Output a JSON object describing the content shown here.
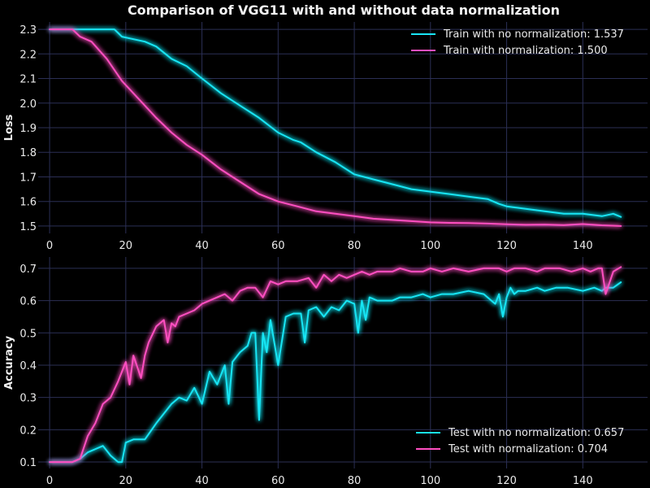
{
  "chart_data": {
    "title": "Comparison of VGG11 with and without data normalization",
    "grid": true,
    "colors": {
      "no_normalization": "#19e6f5",
      "normalization": "#ff4fc1",
      "background": "#000000",
      "grid": "#2b2f55"
    },
    "panels": [
      {
        "id": "loss",
        "type": "line",
        "ylabel": "Loss",
        "xlim": [
          -3,
          157
        ],
        "ylim": [
          1.47,
          2.33
        ],
        "xticks": [
          "0",
          "20",
          "40",
          "60",
          "80",
          "100",
          "120",
          "140"
        ],
        "yticks": [
          "1.5",
          "1.6",
          "1.7",
          "1.8",
          "1.9",
          "2.0",
          "2.1",
          "2.2",
          "2.3"
        ],
        "legend_position": "upper-right",
        "series": [
          {
            "name": "Train with no normalization: 1.537",
            "color": "#19e6f5",
            "x": [
              0,
              5,
              10,
              15,
              17,
              19,
              25,
              28,
              32,
              36,
              40,
              45,
              50,
              55,
              60,
              64,
              66,
              70,
              75,
              80,
              85,
              90,
              95,
              100,
              105,
              110,
              115,
              118,
              120,
              125,
              130,
              135,
              140,
              145,
              148,
              150
            ],
            "y": [
              2.3,
              2.3,
              2.3,
              2.3,
              2.3,
              2.27,
              2.25,
              2.23,
              2.18,
              2.15,
              2.1,
              2.04,
              1.99,
              1.94,
              1.88,
              1.85,
              1.84,
              1.8,
              1.76,
              1.71,
              1.69,
              1.67,
              1.65,
              1.64,
              1.63,
              1.62,
              1.61,
              1.59,
              1.58,
              1.57,
              1.56,
              1.55,
              1.55,
              1.54,
              1.55,
              1.537
            ]
          },
          {
            "name": "Train with normalization: 1.500",
            "color": "#ff4fc1",
            "x": [
              0,
              3,
              6,
              8,
              11,
              15,
              19,
              22,
              25,
              28,
              32,
              36,
              40,
              45,
              50,
              55,
              60,
              65,
              70,
              75,
              80,
              85,
              90,
              95,
              100,
              105,
              110,
              115,
              120,
              125,
              130,
              135,
              140,
              145,
              150
            ],
            "y": [
              2.3,
              2.3,
              2.3,
              2.27,
              2.25,
              2.18,
              2.09,
              2.04,
              1.99,
              1.94,
              1.88,
              1.83,
              1.79,
              1.73,
              1.68,
              1.63,
              1.6,
              1.58,
              1.56,
              1.55,
              1.54,
              1.53,
              1.525,
              1.52,
              1.515,
              1.513,
              1.512,
              1.51,
              1.507,
              1.505,
              1.506,
              1.504,
              1.508,
              1.503,
              1.5
            ]
          }
        ]
      },
      {
        "id": "accuracy",
        "type": "line",
        "ylabel": "Accuracy",
        "xlim": [
          -3,
          157
        ],
        "ylim": [
          0.08,
          0.735
        ],
        "xticks": [
          "0",
          "20",
          "40",
          "60",
          "80",
          "100",
          "120",
          "140"
        ],
        "yticks": [
          "0.1",
          "0.2",
          "0.3",
          "0.4",
          "0.5",
          "0.6",
          "0.7"
        ],
        "legend_position": "lower-right",
        "series": [
          {
            "name": "Test with no normalization: 0.657",
            "color": "#19e6f5",
            "x": [
              0,
              2,
              4,
              6,
              8,
              10,
              12,
              14,
              16,
              18,
              19,
              20,
              22,
              25,
              28,
              30,
              32,
              34,
              36,
              38,
              40,
              42,
              44,
              46,
              47,
              48,
              50,
              52,
              53,
              54,
              55,
              56,
              57,
              58,
              60,
              62,
              64,
              66,
              67,
              68,
              70,
              72,
              74,
              76,
              78,
              80,
              81,
              82,
              83,
              84,
              86,
              88,
              90,
              92,
              95,
              98,
              100,
              103,
              106,
              110,
              114,
              117,
              118,
              119,
              120,
              121,
              122,
              123,
              125,
              128,
              130,
              133,
              136,
              140,
              143,
              145,
              146,
              148,
              150
            ],
            "y": [
              0.1,
              0.1,
              0.1,
              0.1,
              0.11,
              0.13,
              0.14,
              0.15,
              0.12,
              0.1,
              0.1,
              0.16,
              0.17,
              0.17,
              0.22,
              0.25,
              0.28,
              0.3,
              0.29,
              0.33,
              0.28,
              0.38,
              0.34,
              0.4,
              0.28,
              0.41,
              0.44,
              0.46,
              0.5,
              0.5,
              0.23,
              0.5,
              0.44,
              0.54,
              0.4,
              0.55,
              0.56,
              0.56,
              0.47,
              0.57,
              0.58,
              0.55,
              0.58,
              0.57,
              0.6,
              0.59,
              0.5,
              0.6,
              0.54,
              0.61,
              0.6,
              0.6,
              0.6,
              0.61,
              0.61,
              0.62,
              0.61,
              0.62,
              0.62,
              0.63,
              0.62,
              0.59,
              0.62,
              0.55,
              0.61,
              0.64,
              0.62,
              0.63,
              0.63,
              0.64,
              0.63,
              0.64,
              0.64,
              0.63,
              0.64,
              0.63,
              0.64,
              0.64,
              0.657
            ]
          },
          {
            "name": "Test with normalization: 0.704",
            "color": "#ff4fc1",
            "x": [
              0,
              2,
              4,
              6,
              8,
              10,
              12,
              14,
              16,
              18,
              20,
              21,
              22,
              24,
              25,
              26,
              28,
              30,
              31,
              32,
              33,
              34,
              36,
              38,
              40,
              42,
              44,
              46,
              48,
              50,
              52,
              54,
              56,
              58,
              60,
              62,
              65,
              68,
              70,
              72,
              74,
              76,
              78,
              80,
              82,
              84,
              86,
              88,
              90,
              92,
              95,
              98,
              100,
              103,
              106,
              110,
              114,
              118,
              120,
              122,
              125,
              128,
              130,
              134,
              137,
              140,
              142,
              144,
              145,
              146,
              148,
              150
            ],
            "y": [
              0.1,
              0.1,
              0.1,
              0.1,
              0.11,
              0.18,
              0.22,
              0.28,
              0.3,
              0.35,
              0.41,
              0.34,
              0.43,
              0.36,
              0.43,
              0.47,
              0.52,
              0.54,
              0.47,
              0.53,
              0.52,
              0.55,
              0.56,
              0.57,
              0.59,
              0.6,
              0.61,
              0.62,
              0.6,
              0.63,
              0.64,
              0.64,
              0.61,
              0.66,
              0.65,
              0.66,
              0.66,
              0.67,
              0.64,
              0.68,
              0.66,
              0.68,
              0.67,
              0.68,
              0.69,
              0.68,
              0.69,
              0.69,
              0.69,
              0.7,
              0.69,
              0.69,
              0.7,
              0.69,
              0.7,
              0.69,
              0.7,
              0.7,
              0.69,
              0.7,
              0.7,
              0.69,
              0.7,
              0.7,
              0.69,
              0.7,
              0.69,
              0.7,
              0.7,
              0.62,
              0.69,
              0.704
            ]
          }
        ]
      }
    ]
  }
}
